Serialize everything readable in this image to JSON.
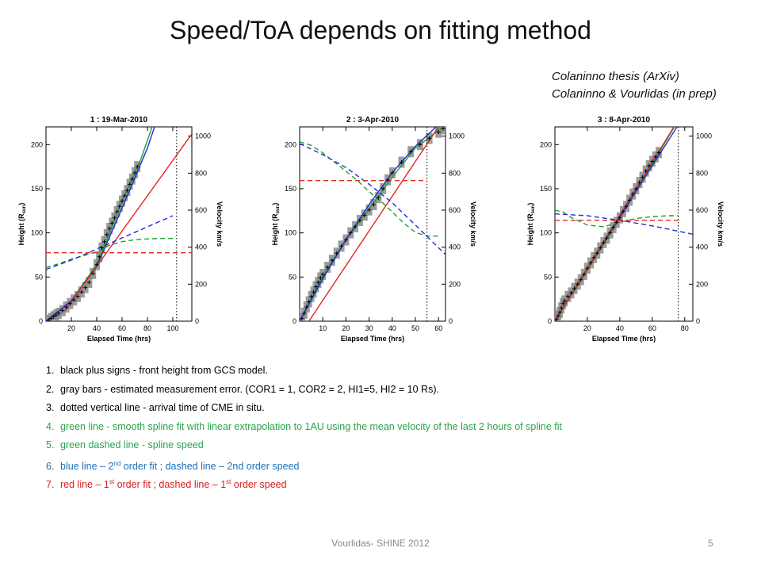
{
  "slide": {
    "title": "Speed/ToA depends on fitting method",
    "citations": [
      "Colaninno thesis (ArXiv)",
      "Colaninno & Vourlidas (in prep)"
    ],
    "footer": "Vourlidas- SHINE 2012",
    "page_number": "5"
  },
  "colors": {
    "black": "#000000",
    "gray": "#8c8c8c",
    "green": "#1e9e2f",
    "blue": "#1f2fd6",
    "red": "#e0281e"
  },
  "notes": [
    {
      "num": "1.",
      "color": "black",
      "parts": [
        "black plus signs - front height from GCS model."
      ]
    },
    {
      "num": "2.",
      "color": "black",
      "parts": [
        "gray bars - estimated measurement error. (COR1 = 1, COR2 = 2, HI1=5, HI2 = 10 Rs)."
      ]
    },
    {
      "num": "3.",
      "color": "black",
      "parts": [
        "dotted vertical line - arrival time of CME in situ."
      ]
    },
    {
      "num": "4.",
      "color": "green",
      "parts": [
        "green line - smooth spline fit with linear extrapolation to 1AU using the mean velocity of the last 2 hours  of spline fit"
      ]
    },
    {
      "num": "5.",
      "color": "green",
      "parts": [
        "green dashed line - spline speed"
      ]
    },
    {
      "num": "6.",
      "color": "blue",
      "parts": [
        "blue line – 2",
        "nd",
        " order fit ; dashed line – 2nd order speed"
      ]
    },
    {
      "num": "7.",
      "color": "red",
      "parts": [
        "red line – 1",
        "st",
        " order fit ;  dashed line – 1",
        "st",
        " order speed"
      ]
    }
  ],
  "chart_data": [
    {
      "type": "line",
      "title": "1 : 19-Mar-2010",
      "xlabel": "Elapsed Time (hrs)",
      "ylabel": "Height (Rsun)",
      "y2label": "Velocity km/s",
      "xlim": [
        0,
        115
      ],
      "ylim": [
        0,
        220
      ],
      "y2lim": [
        0,
        1050
      ],
      "xticks": [
        20,
        40,
        60,
        80,
        100
      ],
      "yticks": [
        0,
        50,
        100,
        150,
        200
      ],
      "y2ticks": [
        0,
        200,
        400,
        600,
        800,
        1000
      ],
      "arrival_time": 103,
      "measurements": [
        [
          2,
          1
        ],
        [
          4,
          3
        ],
        [
          6,
          5
        ],
        [
          8,
          7
        ],
        [
          10,
          9
        ],
        [
          13,
          12
        ],
        [
          16,
          16
        ],
        [
          19,
          20
        ],
        [
          22,
          24
        ],
        [
          25,
          28
        ],
        [
          28,
          33
        ],
        [
          31,
          38
        ],
        [
          34,
          44
        ],
        [
          37,
          54
        ],
        [
          40,
          64
        ],
        [
          42,
          73
        ],
        [
          44,
          83
        ],
        [
          46,
          90
        ],
        [
          48,
          98
        ],
        [
          50,
          105
        ],
        [
          52,
          111
        ],
        [
          54,
          117
        ],
        [
          56,
          124
        ],
        [
          58,
          130
        ],
        [
          60,
          136
        ],
        [
          62,
          142
        ],
        [
          64,
          148
        ],
        [
          66,
          155
        ],
        [
          68,
          161
        ],
        [
          70,
          168
        ],
        [
          72,
          175
        ]
      ],
      "series": [
        {
          "name": "green line",
          "kind": "height",
          "style": "solid",
          "color": "green",
          "x": [
            0,
            20,
            40,
            60,
            75,
            115
          ],
          "y": [
            0,
            23,
            64,
            136,
            184,
            350
          ]
        },
        {
          "name": "blue line",
          "kind": "height",
          "style": "solid",
          "color": "blue",
          "x": [
            0,
            20,
            40,
            60,
            80,
            100,
            115
          ],
          "y": [
            0,
            23,
            62,
            128,
            196,
            282,
            360
          ]
        },
        {
          "name": "red line",
          "kind": "height",
          "style": "solid",
          "color": "red",
          "x": [
            15,
            115
          ],
          "y": [
            12,
            212
          ]
        },
        {
          "name": "green dashed line",
          "kind": "velocity",
          "style": "dashed",
          "color": "green",
          "x": [
            0,
            10,
            20,
            30,
            40,
            50,
            60,
            70,
            80,
            90,
            100
          ],
          "y": [
            290,
            310,
            335,
            355,
            375,
            410,
            430,
            440,
            445,
            447,
            447
          ]
        },
        {
          "name": "blue dashed line",
          "kind": "velocity",
          "style": "dashed",
          "color": "blue",
          "x": [
            0,
            20,
            40,
            60,
            80,
            100
          ],
          "y": [
            280,
            330,
            390,
            450,
            510,
            570
          ]
        },
        {
          "name": "red dashed line",
          "kind": "velocity",
          "style": "dashed",
          "color": "red",
          "x": [
            0,
            115
          ],
          "y": [
            370,
            370
          ]
        }
      ]
    },
    {
      "type": "line",
      "title": "2 :  3-Apr-2010",
      "xlabel": "Elapsed Time (hrs)",
      "ylabel": "Height (Rsun)",
      "y2label": "Velocity km/s",
      "xlim": [
        0,
        63
      ],
      "ylim": [
        0,
        220
      ],
      "y2lim": [
        0,
        1050
      ],
      "xticks": [
        10,
        20,
        30,
        40,
        50,
        60
      ],
      "yticks": [
        0,
        50,
        100,
        150,
        200
      ],
      "y2ticks": [
        0,
        200,
        400,
        600,
        800,
        1000
      ],
      "arrival_time": 55,
      "measurements": [
        [
          1,
          3
        ],
        [
          2,
          9
        ],
        [
          3,
          16
        ],
        [
          4,
          22
        ],
        [
          5,
          28
        ],
        [
          6,
          33
        ],
        [
          7,
          39
        ],
        [
          8,
          44
        ],
        [
          9,
          49
        ],
        [
          10,
          53
        ],
        [
          12,
          61
        ],
        [
          14,
          69
        ],
        [
          16,
          77
        ],
        [
          18,
          85
        ],
        [
          20,
          92
        ],
        [
          22,
          100
        ],
        [
          24,
          107
        ],
        [
          26,
          114
        ],
        [
          28,
          120
        ],
        [
          30,
          126
        ],
        [
          32,
          132
        ],
        [
          34,
          140
        ],
        [
          36,
          150
        ],
        [
          38,
          160
        ],
        [
          40,
          168
        ],
        [
          44,
          180
        ],
        [
          48,
          192
        ],
        [
          52,
          200
        ],
        [
          56,
          207
        ],
        [
          60,
          214
        ],
        [
          62,
          218
        ]
      ],
      "series": [
        {
          "name": "green line",
          "kind": "height",
          "style": "solid",
          "color": "green",
          "x": [
            0,
            10,
            20,
            30,
            40,
            50,
            63
          ],
          "y": [
            0,
            51,
            92,
            127,
            163,
            196,
            222
          ]
        },
        {
          "name": "blue line",
          "kind": "height",
          "style": "solid",
          "color": "blue",
          "x": [
            0,
            10,
            20,
            30,
            40,
            50,
            63
          ],
          "y": [
            0,
            48,
            92,
            132,
            168,
            198,
            230
          ]
        },
        {
          "name": "red line",
          "kind": "height",
          "style": "solid",
          "color": "red",
          "x": [
            4,
            63
          ],
          "y": [
            0,
            232
          ]
        },
        {
          "name": "green dashed line",
          "kind": "velocity",
          "style": "dashed",
          "color": "green",
          "x": [
            0,
            5,
            10,
            15,
            20,
            25,
            30,
            35,
            40,
            45,
            50,
            55,
            60
          ],
          "y": [
            970,
            950,
            910,
            860,
            810,
            760,
            700,
            650,
            590,
            530,
            480,
            460,
            460
          ]
        },
        {
          "name": "blue dashed line",
          "kind": "velocity",
          "style": "dashed",
          "color": "blue",
          "x": [
            0,
            10,
            20,
            30,
            40,
            50,
            63
          ],
          "y": [
            960,
            900,
            830,
            740,
            640,
            520,
            360
          ]
        },
        {
          "name": "red dashed line",
          "kind": "velocity",
          "style": "dashed",
          "color": "red",
          "x": [
            0,
            55
          ],
          "y": [
            760,
            760
          ]
        }
      ]
    },
    {
      "type": "line",
      "title": "3 :  8-Apr-2010",
      "xlabel": "Elapsed Time (hrs)",
      "ylabel": "Height (Rsun)",
      "y2label": "Velocity km/s",
      "xlim": [
        0,
        85
      ],
      "ylim": [
        0,
        220
      ],
      "y2lim": [
        0,
        1050
      ],
      "xticks": [
        20,
        40,
        60,
        80
      ],
      "yticks": [
        0,
        50,
        100,
        150,
        200
      ],
      "y2ticks": [
        0,
        200,
        400,
        600,
        800,
        1000
      ],
      "arrival_time": 76,
      "measurements": [
        [
          1,
          2
        ],
        [
          2,
          6
        ],
        [
          3,
          10
        ],
        [
          4,
          15
        ],
        [
          5,
          20
        ],
        [
          6,
          23
        ],
        [
          8,
          28
        ],
        [
          10,
          32
        ],
        [
          12,
          37
        ],
        [
          14,
          42
        ],
        [
          16,
          47
        ],
        [
          18,
          53
        ],
        [
          20,
          60
        ],
        [
          22,
          66
        ],
        [
          24,
          72
        ],
        [
          26,
          77
        ],
        [
          28,
          83
        ],
        [
          30,
          89
        ],
        [
          32,
          94
        ],
        [
          34,
          100
        ],
        [
          36,
          106
        ],
        [
          38,
          112
        ],
        [
          40,
          117
        ],
        [
          42,
          124
        ],
        [
          44,
          130
        ],
        [
          46,
          137
        ],
        [
          48,
          144
        ],
        [
          50,
          150
        ],
        [
          52,
          157
        ],
        [
          54,
          163
        ],
        [
          56,
          170
        ],
        [
          58,
          176
        ],
        [
          60,
          181
        ],
        [
          62,
          186
        ],
        [
          64,
          191
        ]
      ],
      "series": [
        {
          "name": "green line",
          "kind": "height",
          "style": "solid",
          "color": "green",
          "x": [
            0,
            20,
            40,
            60,
            85
          ],
          "y": [
            0,
            58,
            117,
            178,
            255
          ]
        },
        {
          "name": "blue line",
          "kind": "height",
          "style": "solid",
          "color": "blue",
          "x": [
            0,
            20,
            40,
            60,
            85
          ],
          "y": [
            0,
            60,
            118,
            176,
            248
          ]
        },
        {
          "name": "red line",
          "kind": "height",
          "style": "solid",
          "color": "red",
          "x": [
            0,
            85
          ],
          "y": [
            0,
            255
          ]
        },
        {
          "name": "green dashed line",
          "kind": "velocity",
          "style": "dashed",
          "color": "green",
          "x": [
            0,
            5,
            10,
            20,
            30,
            40,
            50,
            60,
            70,
            76
          ],
          "y": [
            600,
            590,
            560,
            520,
            510,
            535,
            555,
            565,
            570,
            570
          ]
        },
        {
          "name": "blue dashed line",
          "kind": "velocity",
          "style": "dashed",
          "color": "blue",
          "x": [
            0,
            20,
            40,
            60,
            85
          ],
          "y": [
            580,
            570,
            545,
            515,
            470
          ]
        },
        {
          "name": "red dashed line",
          "kind": "velocity",
          "style": "dashed",
          "color": "red",
          "x": [
            0,
            76
          ],
          "y": [
            545,
            545
          ]
        }
      ]
    }
  ]
}
